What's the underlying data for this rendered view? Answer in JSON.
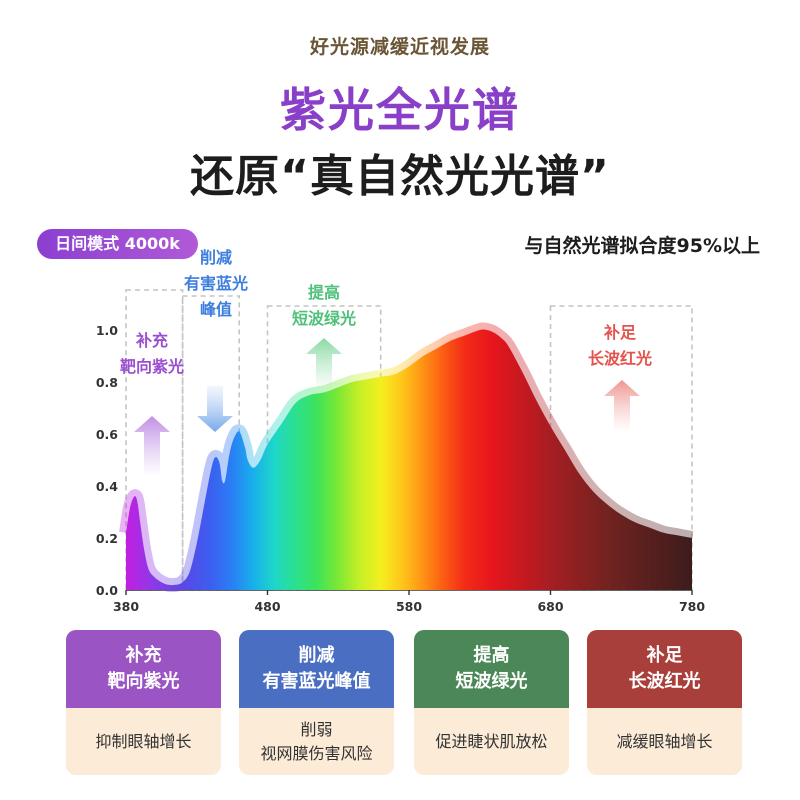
{
  "header": {
    "subtitle": "好光源减缓近视发展",
    "title_line1": "紫光全光谱",
    "title_line2": "还原“真自然光光谱”"
  },
  "mode_label": "日间模式 4000k",
  "similarity_text": "与自然光谱拟合度95%以上",
  "callouts": {
    "violet": [
      "补充",
      "靶向紫光"
    ],
    "blue": [
      "削减",
      "有害蓝光",
      "峰值"
    ],
    "green": [
      "提高",
      "短波绿光"
    ],
    "red": [
      "补足",
      "长波红光"
    ]
  },
  "colors": {
    "violet": "#9b4fd0",
    "blue": "#3d7ede",
    "green": "#4fc07a",
    "red": "#e4534e",
    "card_violet": "#9a54c4",
    "card_blue": "#4a6fc2",
    "card_green": "#4c8757",
    "card_red": "#a93f3b",
    "card_body": "#fbebd7",
    "title_purple": "#8a3fc8",
    "subtitle_brown": "#6a5636"
  },
  "chart_data": {
    "type": "area",
    "xlabel": "",
    "ylabel": "",
    "xlim": [
      380,
      780
    ],
    "ylim": [
      0,
      1.0
    ],
    "x_ticks": [
      "380",
      "480",
      "580",
      "680",
      "780"
    ],
    "y_ticks": [
      "0.0",
      "0.2",
      "0.4",
      "0.6",
      "0.8",
      "1.0"
    ],
    "grid": false,
    "series": [
      {
        "x": [
          380,
          383,
          386,
          388,
          390,
          393,
          396,
          400,
          405,
          410,
          415,
          420,
          425,
          430,
          435,
          440,
          443,
          446,
          448,
          450,
          453,
          456,
          460,
          464,
          466,
          470,
          475,
          480,
          490,
          500,
          510,
          520,
          530,
          540,
          550,
          560,
          570,
          580,
          590,
          600,
          610,
          620,
          630,
          635,
          640,
          645,
          650,
          660,
          670,
          680,
          690,
          700,
          710,
          720,
          730,
          740,
          750,
          760,
          770,
          780
        ],
        "y": [
          0.22,
          0.32,
          0.36,
          0.34,
          0.26,
          0.15,
          0.08,
          0.05,
          0.03,
          0.02,
          0.02,
          0.03,
          0.07,
          0.18,
          0.32,
          0.46,
          0.51,
          0.49,
          0.42,
          0.42,
          0.52,
          0.58,
          0.61,
          0.55,
          0.5,
          0.47,
          0.5,
          0.56,
          0.64,
          0.72,
          0.75,
          0.76,
          0.78,
          0.8,
          0.81,
          0.82,
          0.83,
          0.86,
          0.9,
          0.93,
          0.96,
          0.98,
          1.0,
          1.0,
          0.99,
          0.97,
          0.94,
          0.84,
          0.73,
          0.63,
          0.54,
          0.45,
          0.38,
          0.33,
          0.29,
          0.26,
          0.24,
          0.22,
          0.21,
          0.2
        ]
      }
    ],
    "highlight_regions": [
      {
        "name": "violet",
        "x": [
          380,
          420
        ]
      },
      {
        "name": "blue",
        "x": [
          420,
          460
        ]
      },
      {
        "name": "green",
        "x": [
          480,
          560
        ]
      },
      {
        "name": "red",
        "x": [
          680,
          780
        ]
      }
    ]
  },
  "cards": [
    {
      "title": [
        "补充",
        "靶向紫光"
      ],
      "body": [
        "抑制眼轴增长"
      ]
    },
    {
      "title": [
        "削减",
        "有害蓝光峰值"
      ],
      "body": [
        "削弱",
        "视网膜伤害风险"
      ]
    },
    {
      "title": [
        "提高",
        "短波绿光"
      ],
      "body": [
        "促进睫状肌放松"
      ]
    },
    {
      "title": [
        "补足",
        "长波红光"
      ],
      "body": [
        "减缓眼轴增长"
      ]
    }
  ]
}
